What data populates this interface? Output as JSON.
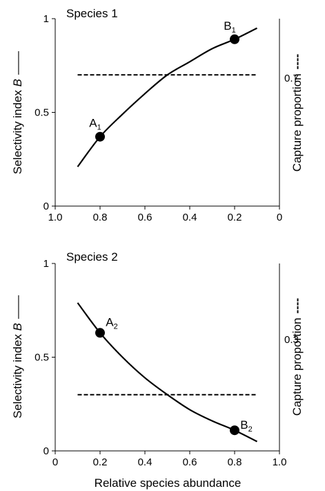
{
  "figure": {
    "xlabel": "Relative species abundance"
  },
  "chart_data": [
    {
      "type": "line",
      "title": "Species 1",
      "ylabel": "Selectivity index B",
      "ylabel_base": "Selectivity index ",
      "ylabel_var": "B",
      "y2label": "Capture proportion",
      "xlim": [
        1.0,
        0
      ],
      "ylim": [
        0,
        1
      ],
      "x_ticks": [
        "1.0",
        "0.8",
        "0.6",
        "0.4",
        "0.2",
        "0"
      ],
      "y_ticks": [
        "0",
        "0.5",
        "1"
      ],
      "series": [
        {
          "style": "solid",
          "x": [
            0.9,
            0.8,
            0.7,
            0.6,
            0.5,
            0.4,
            0.3,
            0.2,
            0.1
          ],
          "y": [
            0.21,
            0.37,
            0.49,
            0.6,
            0.7,
            0.77,
            0.84,
            0.89,
            0.95
          ]
        },
        {
          "style": "dashed",
          "x": [
            0.9,
            0.1
          ],
          "y": [
            0.7,
            0.7
          ]
        }
      ],
      "points": [
        {
          "label": "A",
          "sub": "1",
          "x": 0.8,
          "y": 0.37
        },
        {
          "label": "B",
          "sub": "1",
          "x": 0.2,
          "y": 0.89
        }
      ],
      "right_value": "0.7"
    },
    {
      "type": "line",
      "title": "Species 2",
      "ylabel": "Selectivity index B",
      "ylabel_base": "Selectivity index ",
      "ylabel_var": "B",
      "y2label": "Capture proportion",
      "xlim": [
        0,
        1.0
      ],
      "ylim": [
        0,
        1
      ],
      "x_ticks": [
        "0",
        "0.2",
        "0.4",
        "0.6",
        "0.8",
        "1.0"
      ],
      "y_ticks": [
        "0",
        "0.5",
        "1"
      ],
      "series": [
        {
          "style": "solid",
          "x": [
            0.1,
            0.2,
            0.3,
            0.4,
            0.5,
            0.6,
            0.7,
            0.8,
            0.9
          ],
          "y": [
            0.79,
            0.63,
            0.5,
            0.39,
            0.3,
            0.22,
            0.16,
            0.11,
            0.05
          ]
        },
        {
          "style": "dashed",
          "x": [
            0.1,
            0.9
          ],
          "y": [
            0.3,
            0.3
          ]
        }
      ],
      "points": [
        {
          "label": "A",
          "sub": "2",
          "x": 0.2,
          "y": 0.63
        },
        {
          "label": "B",
          "sub": "2",
          "x": 0.8,
          "y": 0.11
        }
      ],
      "right_value": "0.3"
    }
  ]
}
